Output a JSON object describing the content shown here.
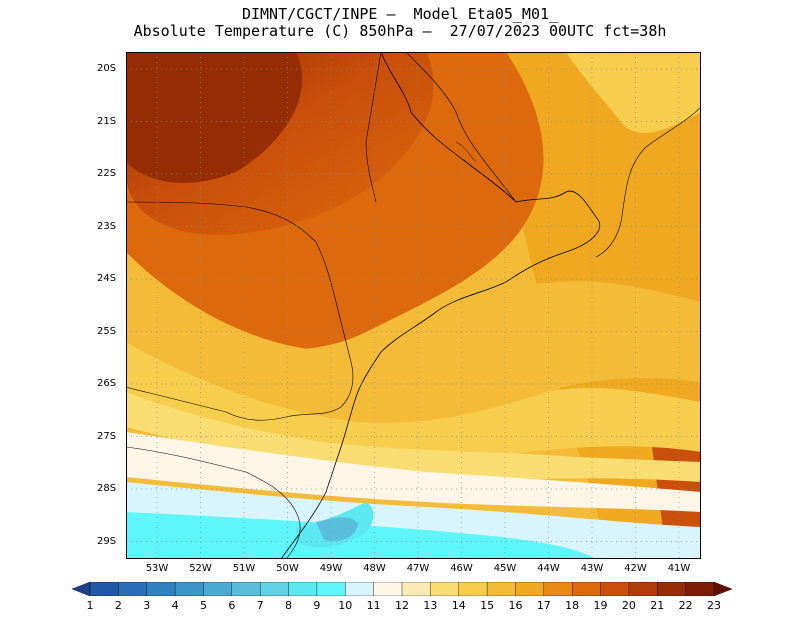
{
  "title": {
    "line1": "DIMNT/CGCT/INPE –  Model Eta05_M01_",
    "line2": "Absolute Temperature (C) 850hPa –  27/07/2023 00UTC fct=38h"
  },
  "map": {
    "lat_ticks": [
      "20S",
      "21S",
      "22S",
      "23S",
      "24S",
      "25S",
      "26S",
      "27S",
      "28S",
      "29S"
    ],
    "lon_ticks": [
      "53W",
      "52W",
      "51W",
      "50W",
      "49W",
      "48W",
      "47W",
      "46W",
      "45W",
      "44W",
      "43W",
      "42W",
      "41W"
    ],
    "lat_range": [
      -29.4,
      -19.8
    ],
    "lon_range": [
      -53.8,
      -40.8
    ],
    "grid": "dotted"
  },
  "colorbar": {
    "labels": [
      "1",
      "2",
      "3",
      "4",
      "5",
      "6",
      "7",
      "8",
      "9",
      "10",
      "11",
      "12",
      "13",
      "14",
      "15",
      "16",
      "17",
      "18",
      "19",
      "20",
      "21",
      "22",
      "23"
    ],
    "colors": [
      "#1f3f8f",
      "#2158a8",
      "#2a6fb8",
      "#3182c0",
      "#3c95c8",
      "#4aaad2",
      "#58bedc",
      "#5fd2e6",
      "#5ce8f0",
      "#5ef6fb",
      "#d8f4ff",
      "#fdf6e6",
      "#fbeab0",
      "#f9dd72",
      "#f7cd4d",
      "#f3bb38",
      "#efa81f",
      "#e88a12",
      "#dc6a0c",
      "#c94f0a",
      "#b13c08",
      "#972d05",
      "#7d1e04",
      "#650f02"
    ]
  }
}
